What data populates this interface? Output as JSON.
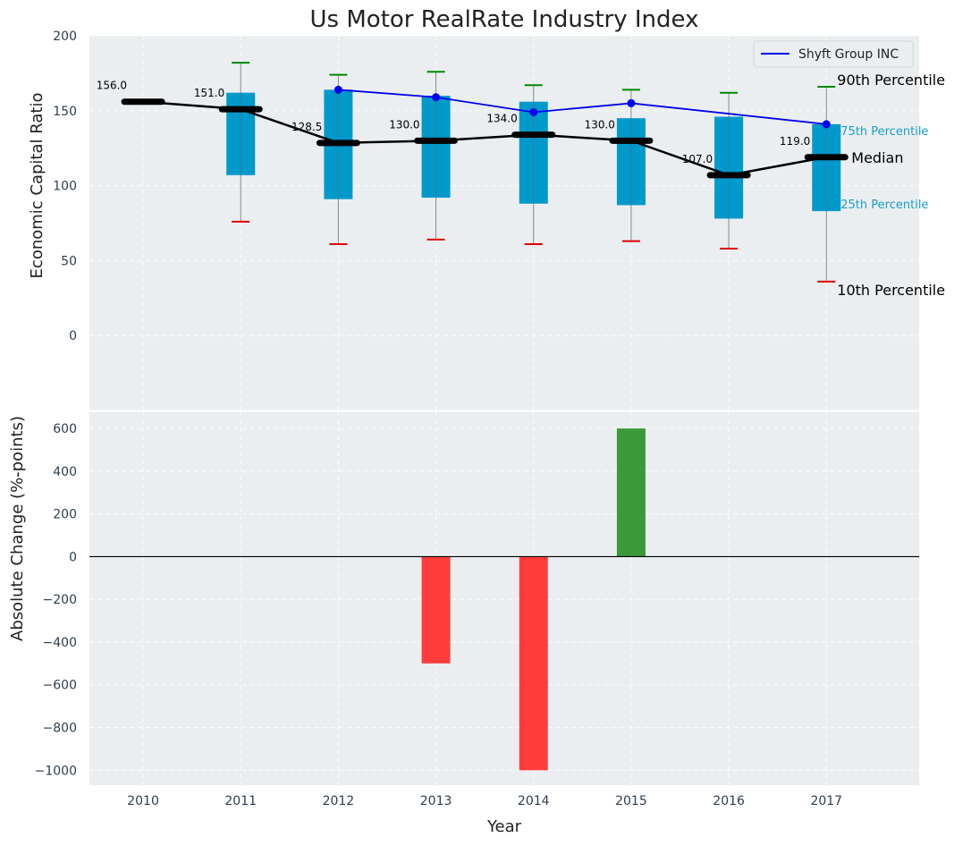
{
  "chart_data": [
    {
      "type": "box",
      "title": "Us Motor RealRate Industry Index",
      "xlabel": "",
      "ylabel": "Economic Capital Ratio",
      "ylim": [
        -50,
        200
      ],
      "yticks": [
        0,
        50,
        100,
        150,
        200
      ],
      "categories": [
        "2010",
        "2011",
        "2012",
        "2013",
        "2014",
        "2015",
        "2016",
        "2017"
      ],
      "boxes": [
        {
          "year": "2010",
          "p10": null,
          "p25": null,
          "median": 156.0,
          "p75": null,
          "p90": null
        },
        {
          "year": "2011",
          "p10": 76,
          "p25": 107,
          "median": 151.0,
          "p75": 162,
          "p90": 182
        },
        {
          "year": "2012",
          "p10": 61,
          "p25": 91,
          "median": 128.5,
          "p75": 164,
          "p90": 174
        },
        {
          "year": "2013",
          "p10": 64,
          "p25": 92,
          "median": 130.0,
          "p75": 160,
          "p90": 176
        },
        {
          "year": "2014",
          "p10": 61,
          "p25": 88,
          "median": 134.0,
          "p75": 156,
          "p90": 167
        },
        {
          "year": "2015",
          "p10": 63,
          "p25": 87,
          "median": 130.0,
          "p75": 145,
          "p90": 164
        },
        {
          "year": "2016",
          "p10": 58,
          "p25": 78,
          "median": 107.0,
          "p75": 146,
          "p90": 162
        },
        {
          "year": "2017",
          "p10": 36,
          "p25": 83,
          "median": 119.0,
          "p75": 141,
          "p90": 166
        }
      ],
      "median_labels": [
        "156.0",
        "151.0",
        "128.5",
        "130.0",
        "134.0",
        "130.0",
        "107.0",
        "119.0"
      ],
      "series": [
        {
          "name": "Shyft Group INC",
          "color": "#0000ee",
          "x": [
            "2012",
            "2013",
            "2014",
            "2015",
            "2017"
          ],
          "values": [
            164,
            159,
            149,
            155,
            141
          ]
        }
      ],
      "legend": "top-right",
      "annotations": {
        "p90": "90th Percentile",
        "p75": "75th Percentile",
        "median": "Median",
        "p25": "25th Percentile",
        "p10": "10th Percentile"
      },
      "colors": {
        "box": "#0099cc",
        "median": "#000000",
        "whisker_top": "#008800",
        "whisker_bottom": "#dd0000",
        "background": "#eaeef0"
      }
    },
    {
      "type": "bar",
      "xlabel": "Year",
      "ylabel": "Absolute Change (%-points)",
      "ylim": [
        -1070,
        680
      ],
      "yticks": [
        -1000,
        -800,
        -600,
        -400,
        -200,
        0,
        200,
        400,
        600
      ],
      "categories": [
        "2010",
        "2011",
        "2012",
        "2013",
        "2014",
        "2015",
        "2016",
        "2017"
      ],
      "values": [
        0,
        0,
        0,
        -500,
        -1000,
        600,
        0,
        0
      ],
      "colors": {
        "positive": "#3a9a3a",
        "negative": "#ff3c3c"
      }
    }
  ]
}
